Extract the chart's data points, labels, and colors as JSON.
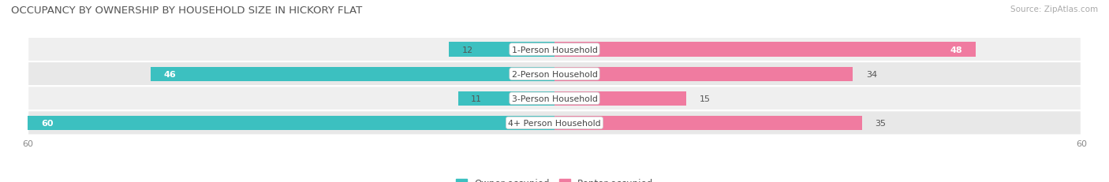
{
  "title": "OCCUPANCY BY OWNERSHIP BY HOUSEHOLD SIZE IN HICKORY FLAT",
  "source": "Source: ZipAtlas.com",
  "categories": [
    "1-Person Household",
    "2-Person Household",
    "3-Person Household",
    "4+ Person Household"
  ],
  "owner_values": [
    12,
    46,
    11,
    60
  ],
  "renter_values": [
    48,
    34,
    15,
    35
  ],
  "owner_color": "#3CC0C0",
  "renter_color": "#F07BA0",
  "row_bg_colors": [
    "#EFEFEF",
    "#E8E8E8",
    "#EFEFEF",
    "#E8E8E8"
  ],
  "xlim": 60,
  "title_fontsize": 9.5,
  "legend_owner_color": "#3CC0C0",
  "legend_renter_color": "#F07BA0"
}
